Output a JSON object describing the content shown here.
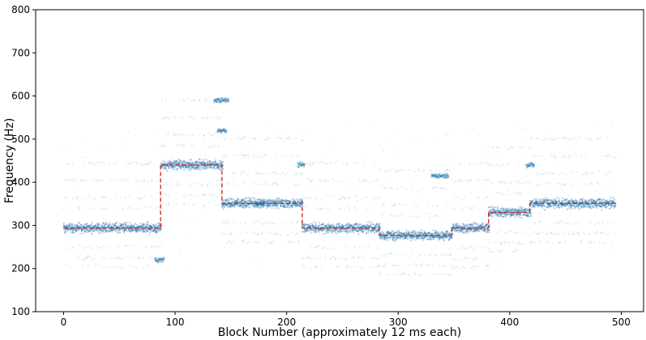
{
  "chart_data": {
    "type": "scatter",
    "title": "",
    "xlabel": "Block Number (approximately 12 ms each)",
    "ylabel": "Frequency (Hz)",
    "xlim": [
      -25,
      520
    ],
    "ylim": [
      100,
      800
    ],
    "x_ticks": [
      0,
      100,
      200,
      300,
      400,
      500
    ],
    "y_ticks": [
      100,
      200,
      300,
      400,
      500,
      600,
      700,
      800
    ],
    "grid": false,
    "legend": "none",
    "colors": {
      "scatter": "#1f77b4",
      "line": "#d62728",
      "axis": "#000000"
    },
    "series": [
      {
        "type": "step-line",
        "segments": [
          {
            "x0": 0,
            "x1": 87,
            "y": 294
          },
          {
            "x0": 87,
            "x1": 142,
            "y": 440
          },
          {
            "x0": 142,
            "x1": 214,
            "y": 351
          },
          {
            "x0": 214,
            "x1": 283,
            "y": 294
          },
          {
            "x0": 283,
            "x1": 348,
            "y": 277
          },
          {
            "x0": 348,
            "x1": 381,
            "y": 294
          },
          {
            "x0": 381,
            "x1": 418,
            "y": 330
          },
          {
            "x0": 418,
            "x1": 494,
            "y": 351
          }
        ]
      },
      {
        "type": "scatter-cloud",
        "dense_spread_hz": 16,
        "harmonic_offsets_hz": [
          -90,
          -70,
          -45,
          45,
          70,
          110,
          150
        ],
        "outlier_clusters": [
          {
            "x0": 82,
            "x1": 90,
            "y": 220
          },
          {
            "x0": 135,
            "x1": 148,
            "y": 590
          },
          {
            "x0": 138,
            "x1": 146,
            "y": 520
          },
          {
            "x0": 172,
            "x1": 180,
            "y": 350
          },
          {
            "x0": 210,
            "x1": 216,
            "y": 440
          },
          {
            "x0": 330,
            "x1": 345,
            "y": 415
          },
          {
            "x0": 415,
            "x1": 422,
            "y": 440
          }
        ]
      }
    ]
  }
}
